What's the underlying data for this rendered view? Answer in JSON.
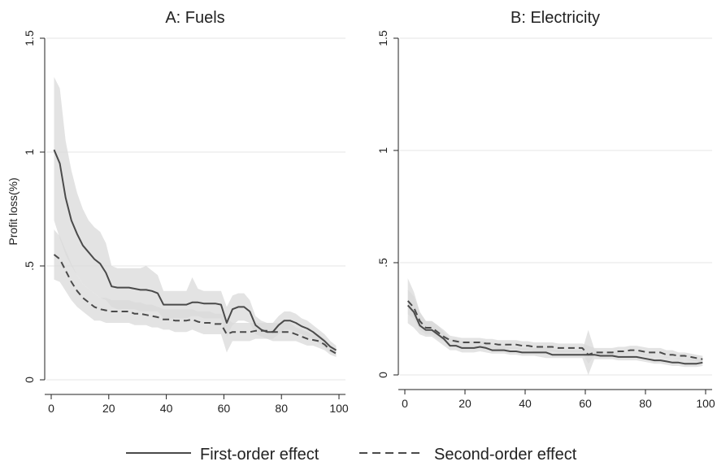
{
  "legend": {
    "items": [
      {
        "label": "First-order effect",
        "style": "solid"
      },
      {
        "label": "Second-order effect",
        "style": "dashed"
      }
    ],
    "placement": "bottom-center"
  },
  "colors": {
    "line": "#4a4a4a",
    "band": "#d9d9d9",
    "grid": "#e6e6e6",
    "axis": "#222222"
  },
  "chart_data": [
    {
      "type": "line",
      "title": "A: Fuels",
      "xlabel": "",
      "ylabel": "Profit loss(%)",
      "xlim": [
        0,
        100
      ],
      "ylim": [
        0,
        1.5
      ],
      "xticks": [
        0,
        20,
        40,
        60,
        80,
        100
      ],
      "yticks": [
        0,
        0.5,
        1,
        1.5
      ],
      "ytick_labels": [
        "0",
        ".5",
        "1",
        "1.5"
      ],
      "grid": true,
      "series": [
        {
          "name": "First-order effect",
          "style": "solid",
          "x": [
            1,
            3,
            5,
            7,
            9,
            11,
            13,
            15,
            17,
            19,
            21,
            23,
            25,
            27,
            29,
            31,
            33,
            35,
            37,
            39,
            41,
            43,
            45,
            47,
            49,
            51,
            53,
            55,
            57,
            59,
            61,
            63,
            65,
            67,
            69,
            71,
            73,
            75,
            77,
            79,
            81,
            83,
            85,
            87,
            89,
            91,
            93,
            95,
            97,
            99
          ],
          "y": [
            1.01,
            0.95,
            0.8,
            0.7,
            0.64,
            0.59,
            0.56,
            0.53,
            0.51,
            0.47,
            0.41,
            0.405,
            0.405,
            0.405,
            0.4,
            0.395,
            0.395,
            0.39,
            0.38,
            0.33,
            0.33,
            0.33,
            0.33,
            0.33,
            0.34,
            0.34,
            0.335,
            0.335,
            0.335,
            0.33,
            0.25,
            0.31,
            0.32,
            0.32,
            0.3,
            0.24,
            0.22,
            0.21,
            0.21,
            0.24,
            0.26,
            0.26,
            0.25,
            0.235,
            0.225,
            0.21,
            0.19,
            0.17,
            0.145,
            0.13
          ],
          "lower": [
            0.7,
            0.62,
            0.55,
            0.5,
            0.46,
            0.42,
            0.4,
            0.38,
            0.36,
            0.35,
            0.32,
            0.31,
            0.31,
            0.31,
            0.31,
            0.3,
            0.3,
            0.3,
            0.3,
            0.27,
            0.27,
            0.27,
            0.27,
            0.27,
            0.28,
            0.28,
            0.27,
            0.27,
            0.27,
            0.27,
            0.19,
            0.24,
            0.26,
            0.26,
            0.25,
            0.2,
            0.19,
            0.18,
            0.18,
            0.2,
            0.22,
            0.22,
            0.21,
            0.2,
            0.19,
            0.18,
            0.16,
            0.14,
            0.12,
            0.11
          ],
          "upper": [
            1.33,
            1.28,
            1.05,
            0.92,
            0.82,
            0.75,
            0.7,
            0.67,
            0.65,
            0.6,
            0.5,
            0.49,
            0.49,
            0.49,
            0.49,
            0.49,
            0.5,
            0.48,
            0.46,
            0.39,
            0.39,
            0.39,
            0.39,
            0.39,
            0.45,
            0.4,
            0.39,
            0.39,
            0.39,
            0.39,
            0.32,
            0.37,
            0.38,
            0.38,
            0.35,
            0.28,
            0.26,
            0.25,
            0.25,
            0.28,
            0.3,
            0.3,
            0.29,
            0.27,
            0.26,
            0.24,
            0.22,
            0.2,
            0.17,
            0.15
          ]
        },
        {
          "name": "Second-order effect",
          "style": "dashed",
          "x": [
            1,
            3,
            5,
            7,
            9,
            11,
            13,
            15,
            17,
            19,
            21,
            23,
            25,
            27,
            29,
            31,
            33,
            35,
            37,
            39,
            41,
            43,
            45,
            47,
            49,
            51,
            53,
            55,
            57,
            59,
            61,
            63,
            65,
            67,
            69,
            71,
            73,
            75,
            77,
            79,
            81,
            83,
            85,
            87,
            89,
            91,
            93,
            95,
            97,
            99
          ],
          "y": [
            0.55,
            0.53,
            0.48,
            0.43,
            0.39,
            0.36,
            0.34,
            0.32,
            0.31,
            0.305,
            0.3,
            0.3,
            0.3,
            0.3,
            0.29,
            0.29,
            0.285,
            0.28,
            0.275,
            0.265,
            0.265,
            0.26,
            0.26,
            0.26,
            0.265,
            0.255,
            0.25,
            0.25,
            0.245,
            0.245,
            0.2,
            0.21,
            0.21,
            0.21,
            0.21,
            0.215,
            0.215,
            0.215,
            0.21,
            0.21,
            0.21,
            0.21,
            0.2,
            0.19,
            0.18,
            0.175,
            0.17,
            0.155,
            0.13,
            0.115
          ],
          "lower": [
            0.44,
            0.43,
            0.39,
            0.35,
            0.32,
            0.3,
            0.28,
            0.26,
            0.26,
            0.25,
            0.25,
            0.25,
            0.25,
            0.25,
            0.24,
            0.24,
            0.24,
            0.23,
            0.23,
            0.22,
            0.22,
            0.21,
            0.21,
            0.21,
            0.22,
            0.21,
            0.2,
            0.2,
            0.2,
            0.2,
            0.12,
            0.17,
            0.17,
            0.17,
            0.17,
            0.18,
            0.18,
            0.18,
            0.17,
            0.17,
            0.17,
            0.17,
            0.17,
            0.16,
            0.15,
            0.15,
            0.14,
            0.13,
            0.11,
            0.1
          ],
          "upper": [
            0.66,
            0.63,
            0.57,
            0.51,
            0.46,
            0.42,
            0.4,
            0.38,
            0.36,
            0.36,
            0.35,
            0.35,
            0.35,
            0.35,
            0.34,
            0.34,
            0.33,
            0.33,
            0.32,
            0.31,
            0.31,
            0.31,
            0.31,
            0.31,
            0.31,
            0.3,
            0.3,
            0.3,
            0.29,
            0.29,
            0.27,
            0.25,
            0.25,
            0.25,
            0.25,
            0.25,
            0.25,
            0.25,
            0.25,
            0.25,
            0.25,
            0.25,
            0.23,
            0.22,
            0.21,
            0.2,
            0.2,
            0.18,
            0.15,
            0.13
          ]
        }
      ]
    },
    {
      "type": "line",
      "title": "B: Electricity",
      "xlabel": "",
      "ylabel": "",
      "xlim": [
        0,
        100
      ],
      "ylim": [
        0,
        1.5
      ],
      "xticks": [
        0,
        20,
        40,
        60,
        80,
        100
      ],
      "yticks": [
        0,
        0.5,
        1,
        1.5
      ],
      "ytick_labels": [
        "0",
        ".5",
        "1",
        "1.5"
      ],
      "grid": true,
      "series": [
        {
          "name": "First-order effect",
          "style": "solid",
          "x": [
            1,
            3,
            5,
            7,
            9,
            11,
            13,
            15,
            17,
            19,
            21,
            23,
            25,
            27,
            29,
            31,
            33,
            35,
            37,
            39,
            41,
            43,
            45,
            47,
            49,
            51,
            53,
            55,
            57,
            59,
            61,
            63,
            65,
            67,
            69,
            71,
            73,
            75,
            77,
            79,
            81,
            83,
            85,
            87,
            89,
            91,
            93,
            95,
            97,
            99
          ],
          "y": [
            0.31,
            0.28,
            0.22,
            0.2,
            0.2,
            0.18,
            0.16,
            0.13,
            0.13,
            0.12,
            0.12,
            0.12,
            0.125,
            0.12,
            0.11,
            0.11,
            0.11,
            0.105,
            0.105,
            0.1,
            0.1,
            0.1,
            0.1,
            0.1,
            0.09,
            0.09,
            0.09,
            0.09,
            0.09,
            0.09,
            0.09,
            0.09,
            0.085,
            0.085,
            0.085,
            0.08,
            0.08,
            0.08,
            0.08,
            0.075,
            0.07,
            0.065,
            0.065,
            0.06,
            0.055,
            0.055,
            0.05,
            0.05,
            0.05,
            0.055
          ],
          "lower": [
            0.23,
            0.21,
            0.18,
            0.17,
            0.17,
            0.15,
            0.13,
            0.11,
            0.11,
            0.1,
            0.1,
            0.1,
            0.105,
            0.1,
            0.095,
            0.095,
            0.095,
            0.09,
            0.09,
            0.085,
            0.085,
            0.085,
            0.08,
            0.075,
            0.075,
            0.075,
            0.075,
            0.075,
            0.075,
            0.075,
            0.0,
            0.07,
            0.07,
            0.07,
            0.07,
            0.065,
            0.065,
            0.065,
            0.065,
            0.06,
            0.055,
            0.05,
            0.05,
            0.045,
            0.04,
            0.04,
            0.035,
            0.035,
            0.035,
            0.04
          ],
          "upper": [
            0.43,
            0.37,
            0.28,
            0.24,
            0.24,
            0.22,
            0.19,
            0.16,
            0.16,
            0.15,
            0.15,
            0.15,
            0.15,
            0.15,
            0.13,
            0.13,
            0.13,
            0.125,
            0.125,
            0.12,
            0.12,
            0.12,
            0.125,
            0.125,
            0.115,
            0.11,
            0.11,
            0.11,
            0.11,
            0.11,
            0.2,
            0.115,
            0.105,
            0.105,
            0.105,
            0.1,
            0.1,
            0.1,
            0.1,
            0.095,
            0.09,
            0.085,
            0.085,
            0.08,
            0.075,
            0.075,
            0.07,
            0.07,
            0.07,
            0.075
          ]
        },
        {
          "name": "Second-order effect",
          "style": "dashed",
          "x": [
            1,
            3,
            5,
            7,
            9,
            11,
            13,
            15,
            17,
            19,
            21,
            23,
            25,
            27,
            29,
            31,
            33,
            35,
            37,
            39,
            41,
            43,
            45,
            47,
            49,
            51,
            53,
            55,
            57,
            59,
            61,
            63,
            65,
            67,
            69,
            71,
            73,
            75,
            77,
            79,
            81,
            83,
            85,
            87,
            89,
            91,
            93,
            95,
            97,
            99
          ],
          "y": [
            0.33,
            0.3,
            0.24,
            0.21,
            0.21,
            0.19,
            0.17,
            0.155,
            0.15,
            0.145,
            0.145,
            0.145,
            0.145,
            0.14,
            0.14,
            0.135,
            0.135,
            0.135,
            0.135,
            0.13,
            0.13,
            0.125,
            0.125,
            0.125,
            0.125,
            0.12,
            0.12,
            0.12,
            0.12,
            0.12,
            0.09,
            0.1,
            0.1,
            0.1,
            0.1,
            0.105,
            0.105,
            0.11,
            0.11,
            0.105,
            0.1,
            0.1,
            0.1,
            0.09,
            0.09,
            0.085,
            0.085,
            0.08,
            0.075,
            0.07
          ],
          "lower": [
            0.27,
            0.25,
            0.2,
            0.18,
            0.18,
            0.16,
            0.15,
            0.135,
            0.13,
            0.125,
            0.125,
            0.125,
            0.125,
            0.12,
            0.12,
            0.115,
            0.115,
            0.115,
            0.115,
            0.11,
            0.11,
            0.105,
            0.105,
            0.105,
            0.105,
            0.1,
            0.1,
            0.1,
            0.1,
            0.1,
            0.05,
            0.085,
            0.085,
            0.085,
            0.085,
            0.09,
            0.09,
            0.095,
            0.095,
            0.09,
            0.085,
            0.085,
            0.085,
            0.075,
            0.075,
            0.07,
            0.07,
            0.065,
            0.06,
            0.055
          ],
          "upper": [
            0.38,
            0.35,
            0.28,
            0.24,
            0.24,
            0.22,
            0.2,
            0.175,
            0.17,
            0.165,
            0.165,
            0.165,
            0.165,
            0.16,
            0.16,
            0.155,
            0.155,
            0.155,
            0.155,
            0.15,
            0.15,
            0.145,
            0.145,
            0.145,
            0.145,
            0.14,
            0.14,
            0.14,
            0.14,
            0.14,
            0.13,
            0.12,
            0.12,
            0.12,
            0.12,
            0.125,
            0.125,
            0.13,
            0.13,
            0.125,
            0.12,
            0.12,
            0.12,
            0.11,
            0.11,
            0.1,
            0.1,
            0.095,
            0.09,
            0.085
          ]
        }
      ]
    }
  ]
}
